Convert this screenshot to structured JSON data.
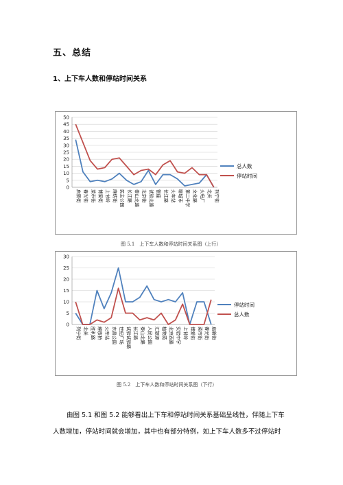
{
  "section_heading": "五、总结",
  "subsection_heading": "1、上下车人数和停站时间关系",
  "charts": [
    {
      "legend": [
        "总人数",
        "停站时间"
      ],
      "caption": "图 5.1　上下车人数和停站时间关系图（上行）",
      "colors": [
        "#4f81bd",
        "#c0504d"
      ]
    },
    {
      "legend": [
        "停站时间",
        "总人数"
      ],
      "caption": "图 5.2　上下车人数和停站时间关系图（下行）",
      "colors": [
        "#4f81bd",
        "#c0504d"
      ]
    }
  ],
  "chart_data": [
    {
      "type": "line",
      "categories": [
        "启新街",
        "春光街",
        "菜市街",
        "博爱街",
        "上甘岭",
        "麻纺街",
        "民主公园",
        "长江路",
        "泰山北路",
        "北京街",
        "试验北路",
        "银座",
        "长江路",
        "火车站",
        "聊城市",
        "第二中学",
        "文化路",
        "火电厂",
        "北关",
        "列宁街"
      ],
      "series": [
        {
          "name": "总人数",
          "values": [
            34,
            11,
            4,
            5,
            4,
            6,
            10,
            5,
            2,
            4,
            12,
            2,
            9,
            9,
            6,
            1,
            2,
            3,
            9,
            0
          ]
        },
        {
          "name": "停站时间",
          "values": [
            45,
            32,
            19,
            13,
            14,
            20,
            21,
            15,
            9,
            12,
            13,
            9,
            16,
            19,
            11,
            10,
            14,
            9,
            9,
            0
          ]
        }
      ],
      "ylim": [
        0,
        50
      ],
      "yticks": [
        0,
        5,
        10,
        15,
        20,
        25,
        30,
        35,
        40,
        45,
        50
      ]
    },
    {
      "type": "line",
      "categories": [
        "列宁街",
        "北关",
        "胜利路",
        "解放桥",
        "火车站",
        "东昌公园",
        "世纪广场",
        "试验试验路",
        "长江路",
        "泰山北路",
        "人民公园",
        "汇银源",
        "植物苑",
        "北京西路",
        "实验中学",
        "上甘岭",
        "博爱街",
        "菜市街",
        "春光街",
        "启新街"
      ],
      "series": [
        {
          "name": "停站时间",
          "values": [
            5,
            0,
            0,
            15,
            7,
            14,
            25,
            10,
            10,
            12,
            17,
            11,
            10,
            11,
            10,
            14,
            0,
            10,
            10,
            0
          ]
        },
        {
          "name": "总人数",
          "values": [
            10,
            0,
            0,
            2,
            1,
            3,
            16,
            5,
            5,
            2,
            3,
            2,
            5,
            0,
            2,
            9,
            0,
            0,
            0,
            11
          ]
        }
      ],
      "ylim": [
        0,
        30
      ],
      "yticks": [
        0,
        5,
        10,
        15,
        20,
        25,
        30
      ]
    }
  ],
  "paragraph": {
    "line1": "由图 5.1 和图 5.2 能够看出上下车和停站时间关系基础呈线性，伴随上下车",
    "line2": "人数增加，停站时间就会增加，其中也有部分特例，如上下车人数多不过停站时"
  }
}
